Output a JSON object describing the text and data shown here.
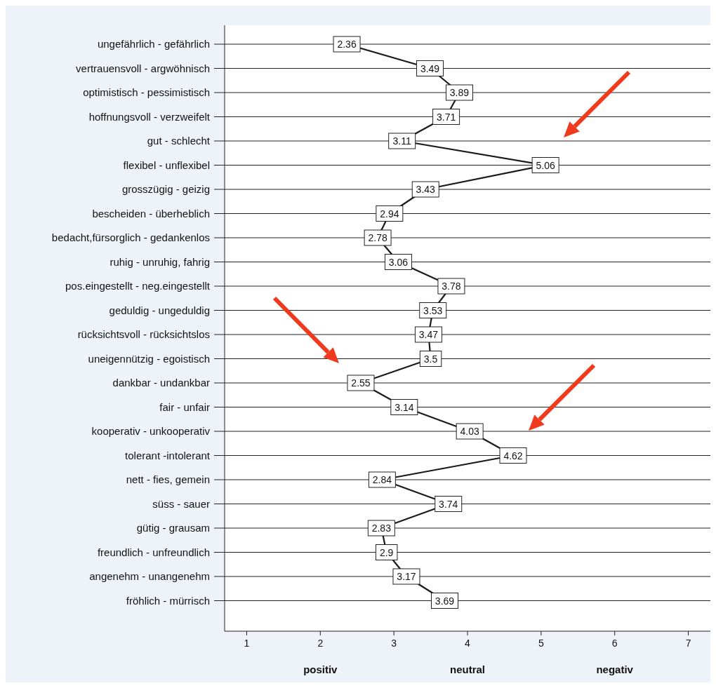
{
  "chart_data": {
    "type": "line",
    "orientation": "horizontal",
    "categories": [
      "ungefährlich - gefährlich",
      "vertrauensvoll - argwöhnisch",
      "optimistisch - pessimistisch",
      "hoffnungsvoll - verzweifelt",
      "gut - schlecht",
      "flexibel - unflexibel",
      "grosszügig - geizig",
      "bescheiden - überheblich",
      "bedacht,fürsorglich - gedankenlos",
      "ruhig - unruhig, fahrig",
      "pos.eingestellt - neg.eingestellt",
      "geduldig - ungeduldig",
      "rücksichtsvoll - rücksichtslos",
      "uneigennützig - egoistisch",
      "dankbar - undankbar",
      "fair - unfair",
      "kooperativ - unkooperativ",
      "tolerant -intolerant",
      "nett - fies, gemein",
      "süss - sauer",
      "gütig - grausam",
      "freundlich - unfreundlich",
      "angenehm - unangenehm",
      "fröhlich - mürrisch"
    ],
    "series": [
      {
        "color": "#1a1a1a",
        "values": [
          2.36,
          3.49,
          3.89,
          3.71,
          3.11,
          5.06,
          3.43,
          2.94,
          2.78,
          3.06,
          3.78,
          3.53,
          3.47,
          3.5,
          2.55,
          3.14,
          4.03,
          4.62,
          2.84,
          3.74,
          2.83,
          2.9,
          3.17,
          3.69
        ]
      }
    ],
    "xlim": [
      0.7,
      7.3
    ],
    "xticks": [
      1,
      2,
      3,
      4,
      5,
      6,
      7
    ],
    "grid": "y",
    "marker": "square",
    "line_style": "solid",
    "data_labels": true,
    "annotations": [
      "positiv",
      "neutral",
      "negativ"
    ]
  }
}
